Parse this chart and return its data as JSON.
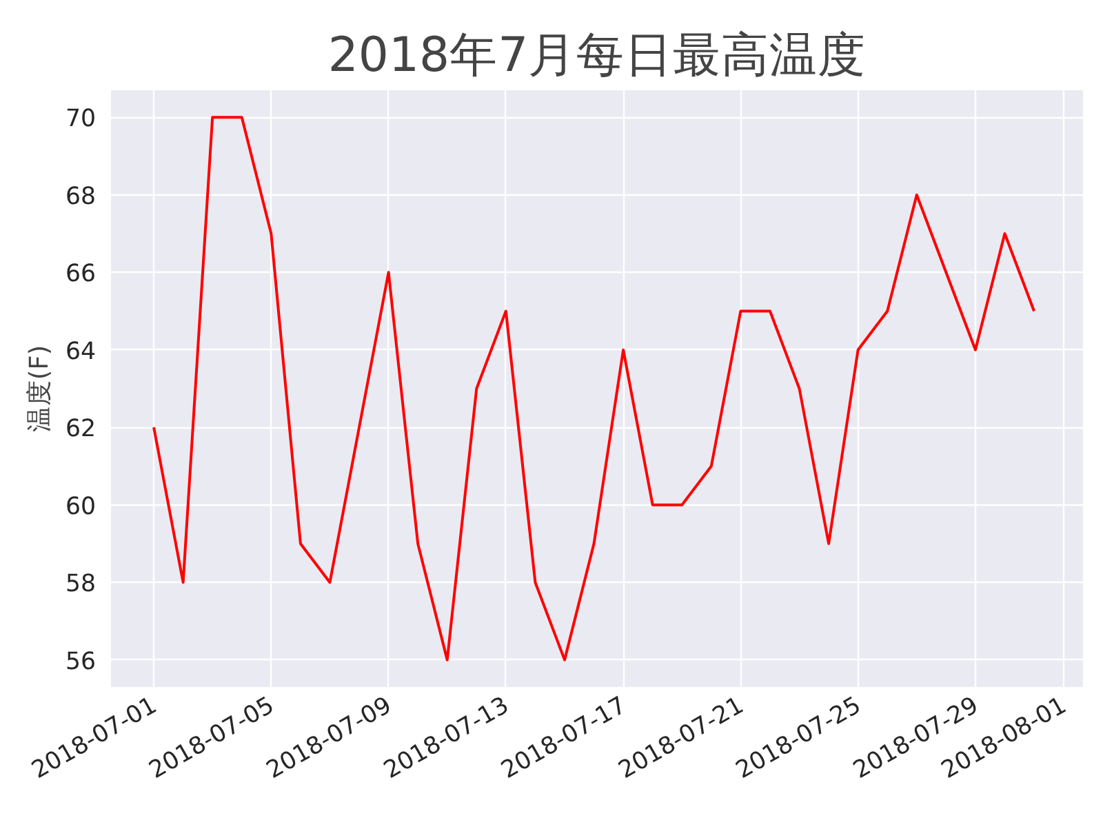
{
  "chart_data": {
    "type": "line",
    "title": "2018年7月每日最高温度",
    "ylabel": "温度(F)",
    "x": [
      "2018-07-01",
      "2018-07-02",
      "2018-07-03",
      "2018-07-04",
      "2018-07-05",
      "2018-07-06",
      "2018-07-07",
      "2018-07-08",
      "2018-07-09",
      "2018-07-10",
      "2018-07-11",
      "2018-07-12",
      "2018-07-13",
      "2018-07-14",
      "2018-07-15",
      "2018-07-16",
      "2018-07-17",
      "2018-07-18",
      "2018-07-19",
      "2018-07-20",
      "2018-07-21",
      "2018-07-22",
      "2018-07-23",
      "2018-07-24",
      "2018-07-25",
      "2018-07-26",
      "2018-07-27",
      "2018-07-28",
      "2018-07-29",
      "2018-07-30",
      "2018-07-31"
    ],
    "series": [
      {
        "color": "#ff0000",
        "values": [
          62,
          58,
          70,
          70,
          67,
          59,
          58,
          62,
          66,
          59,
          56,
          63,
          65,
          58,
          56,
          59,
          64,
          60,
          60,
          61,
          65,
          65,
          63,
          59,
          64,
          65,
          68,
          66,
          64,
          67,
          65
        ]
      }
    ],
    "xlim": [
      "2018-06-29T13:00",
      "2018-08-01T16:00"
    ],
    "xticks": [
      "2018-07-01",
      "2018-07-05",
      "2018-07-09",
      "2018-07-13",
      "2018-07-17",
      "2018-07-21",
      "2018-07-25",
      "2018-07-29",
      "2018-08-01"
    ],
    "ylim": [
      55.3,
      70.7
    ],
    "yticks": [
      56,
      58,
      60,
      62,
      64,
      66,
      68,
      70
    ],
    "grid": true,
    "line_style": "solid"
  }
}
